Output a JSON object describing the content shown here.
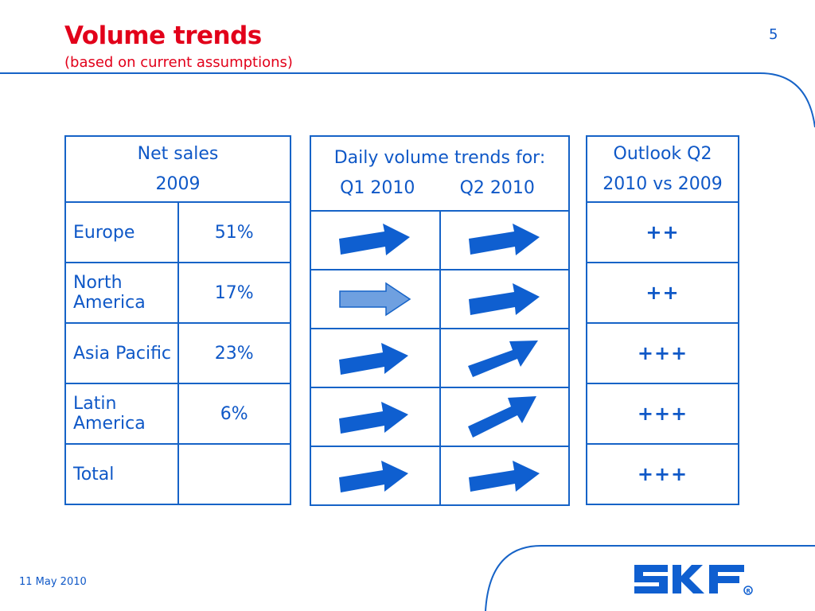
{
  "header": {
    "title": "Volume trends",
    "subtitle": "(based on current assumptions)",
    "page_number": "5"
  },
  "net_sales_table": {
    "header_line1": "Net sales",
    "header_line2": "2009",
    "rows": [
      {
        "region": "Europe",
        "share": "51%"
      },
      {
        "region": "North America",
        "share": "17%"
      },
      {
        "region": "Asia Pacific",
        "share": "23%"
      },
      {
        "region": "Latin America",
        "share": "6%"
      },
      {
        "region": "Total",
        "share": ""
      }
    ]
  },
  "daily_volume_table": {
    "header_line1": "Daily volume trends for:",
    "col1": "Q1 2010",
    "col2": "Q2 2010",
    "rows": [
      {
        "q1": "arrow-right-icon",
        "q2": "arrow-right-icon"
      },
      {
        "q1": "arrow-right-light-icon",
        "q2": "arrow-right-icon"
      },
      {
        "q1": "arrow-right-icon",
        "q2": "arrow-up-right-icon"
      },
      {
        "q1": "arrow-right-icon",
        "q2": "arrow-up-right-icon"
      },
      {
        "q1": "arrow-right-icon",
        "q2": "arrow-right-icon"
      }
    ]
  },
  "outlook_table": {
    "header_line1": "Outlook Q2",
    "header_line2": "2010 vs 2009",
    "rows": [
      "++",
      "++",
      "+++",
      "+++",
      "+++"
    ]
  },
  "footer": {
    "date": "11 May 2010",
    "logo_text": "SKF"
  },
  "colors": {
    "title_red": "#e2001a",
    "brand_blue": "#0f58c7",
    "arrow_dark": "#0f5fd0",
    "arrow_light": "#6fa0e0"
  }
}
